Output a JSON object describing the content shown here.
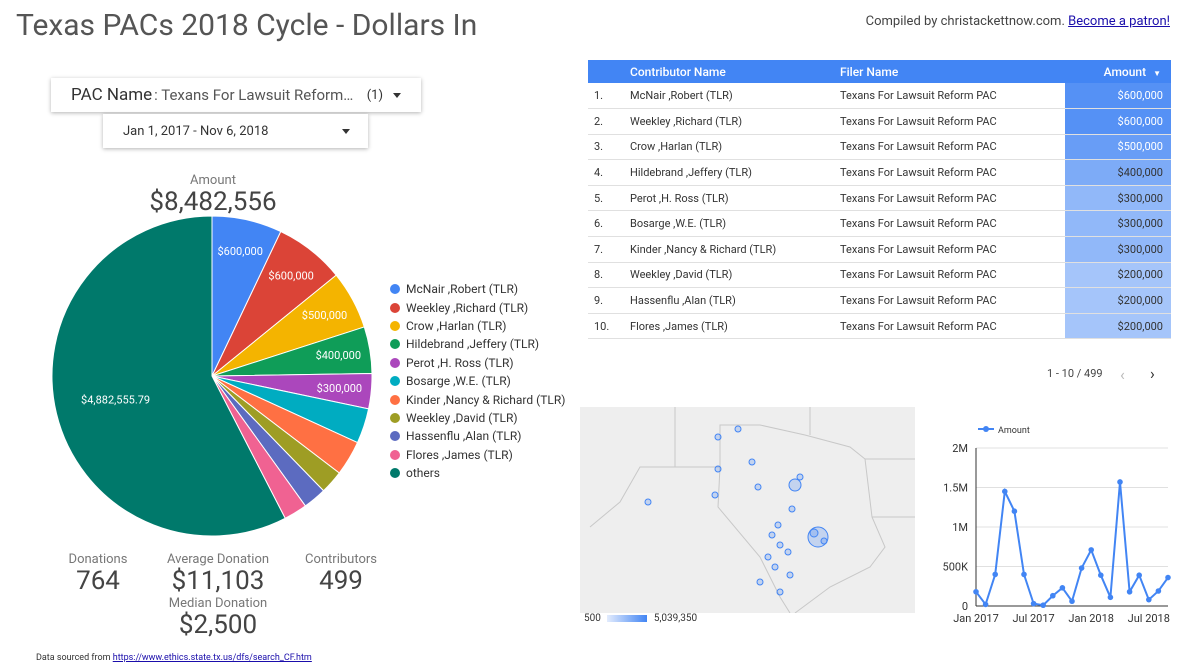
{
  "header": {
    "title": "Texas PACs 2018 Cycle - Dollars In",
    "credit_text": "Compiled by christackettnow.com.",
    "patron_link": "Become a patron!"
  },
  "filters": {
    "pac_label": "PAC Name",
    "pac_value": ": Texans For Lawsuit Reform ...",
    "pac_count": "(1)",
    "date_range": "Jan 1, 2017 - Nov 6, 2018"
  },
  "scorecards": {
    "amount_label": "Amount",
    "amount_value": "$8,482,556",
    "donations_label": "Donations",
    "donations_value": "764",
    "avg_label": "Average Donation",
    "avg_value": "$11,103",
    "contributors_label": "Contributors",
    "contributors_value": "499",
    "median_label": "Median Donation",
    "median_value": "$2,500"
  },
  "colors": {
    "accent": "#4285f4"
  },
  "chart_data": [
    {
      "type": "pie",
      "labels": [
        "McNair ,Robert (TLR)",
        "Weekley ,Richard (TLR)",
        "Crow ,Harlan (TLR)",
        "Hildebrand ,Jeffery (TLR)",
        "Perot ,H. Ross (TLR)",
        "Bosarge ,W.E. (TLR)",
        "Kinder ,Nancy & Richard (TLR)",
        "Weekley ,David (TLR)",
        "Hassenflu ,Alan (TLR)",
        "Flores ,James (TLR)",
        "others"
      ],
      "values": [
        600000,
        600000,
        500000,
        400000,
        300000,
        300000,
        300000,
        200000,
        200000,
        200000,
        4882555.79
      ],
      "slice_labels": [
        "$600,000",
        "$600,000",
        "$500,000",
        "$400,000",
        "$300,000",
        "",
        "",
        "",
        "",
        "",
        "$4,882,555.79"
      ],
      "colors": [
        "#4285f4",
        "#db4437",
        "#f4b400",
        "#0f9d58",
        "#ab47bc",
        "#00acc1",
        "#ff7043",
        "#9e9d24",
        "#5c6bc0",
        "#f06292",
        "#00796b"
      ],
      "legend": "right"
    },
    {
      "type": "line",
      "series": [
        {
          "name": "Amount",
          "values": [
            180000,
            20000,
            400000,
            1450000,
            1200000,
            400000,
            30000,
            10000,
            130000,
            230000,
            60000,
            480000,
            710000,
            390000,
            110000,
            1570000,
            180000,
            390000,
            80000,
            190000,
            360000
          ]
        }
      ],
      "x_tick_labels": [
        "Jan 2017",
        "Jul 2017",
        "Jan 2018",
        "Jul 2018"
      ],
      "y_ticks": [
        0,
        500000,
        1000000,
        1500000,
        2000000
      ],
      "y_tick_labels": [
        "0",
        "500K",
        "1M",
        "1.5M",
        "2M"
      ],
      "ylim": [
        0,
        2000000
      ],
      "legend": "top-left"
    }
  ],
  "table": {
    "columns": [
      "Contributor Name",
      "Filer Name",
      "Amount"
    ],
    "sort_indicator": "▼",
    "rows": [
      {
        "n": "1.",
        "name": "McNair ,Robert (TLR)",
        "filer": "Texans For Lawsuit Reform PAC",
        "amount": "$600,000",
        "value": 600000
      },
      {
        "n": "2.",
        "name": "Weekley ,Richard (TLR)",
        "filer": "Texans For Lawsuit Reform PAC",
        "amount": "$600,000",
        "value": 600000
      },
      {
        "n": "3.",
        "name": "Crow ,Harlan (TLR)",
        "filer": "Texans For Lawsuit Reform PAC",
        "amount": "$500,000",
        "value": 500000
      },
      {
        "n": "4.",
        "name": "Hildebrand ,Jeffery (TLR)",
        "filer": "Texans For Lawsuit Reform PAC",
        "amount": "$400,000",
        "value": 400000
      },
      {
        "n": "5.",
        "name": "Perot ,H. Ross (TLR)",
        "filer": "Texans For Lawsuit Reform PAC",
        "amount": "$300,000",
        "value": 300000
      },
      {
        "n": "6.",
        "name": "Bosarge ,W.E. (TLR)",
        "filer": "Texans For Lawsuit Reform PAC",
        "amount": "$300,000",
        "value": 300000
      },
      {
        "n": "7.",
        "name": "Kinder ,Nancy & Richard (TLR)",
        "filer": "Texans For Lawsuit Reform PAC",
        "amount": "$300,000",
        "value": 300000
      },
      {
        "n": "8.",
        "name": "Weekley ,David (TLR)",
        "filer": "Texans For Lawsuit Reform PAC",
        "amount": "$200,000",
        "value": 200000
      },
      {
        "n": "9.",
        "name": "Hassenflu ,Alan (TLR)",
        "filer": "Texans For Lawsuit Reform PAC",
        "amount": "$200,000",
        "value": 200000
      },
      {
        "n": "10.",
        "name": "Flores ,James (TLR)",
        "filer": "Texans For Lawsuit Reform PAC",
        "amount": "$200,000",
        "value": 200000
      }
    ],
    "pagination": "1 - 10 / 499"
  },
  "map": {
    "scale_min": "500",
    "scale_max": "5,039,350"
  },
  "footer": {
    "text": "Data sourced from",
    "link": "https://www.ethics.state.tx.us/dfs/search_CF.htm"
  }
}
